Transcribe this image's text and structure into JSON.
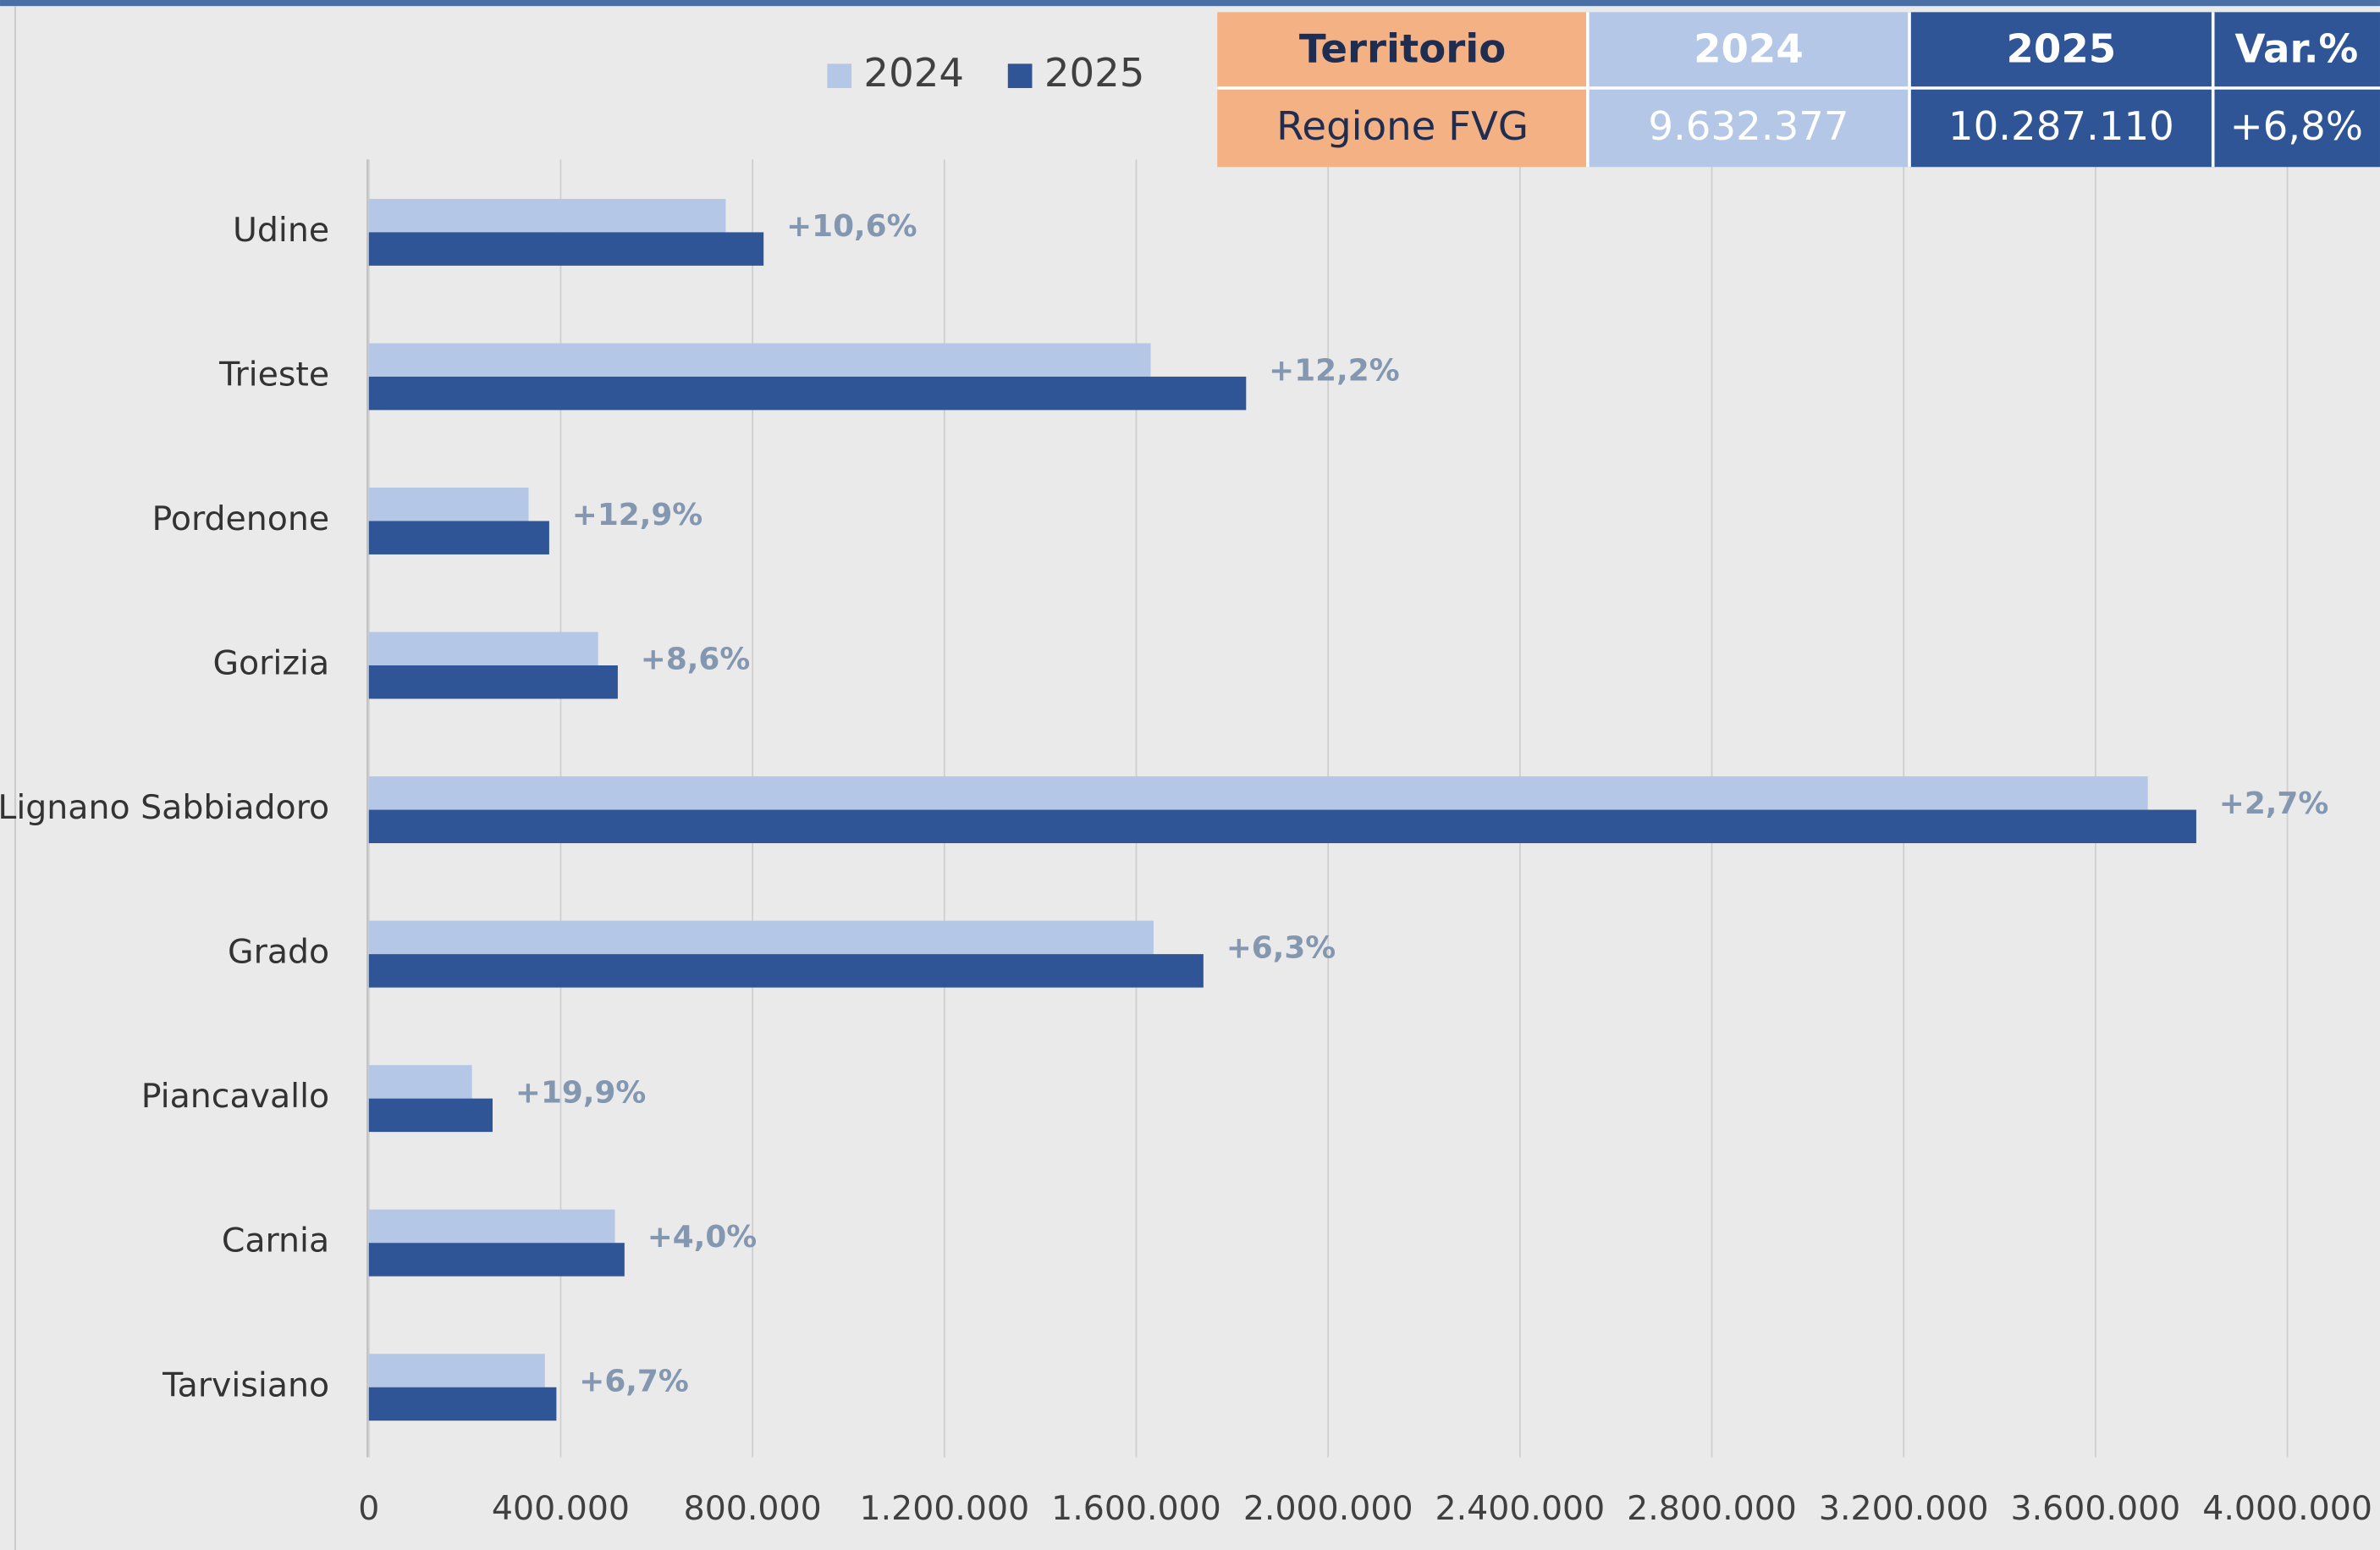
{
  "chart_data": {
    "type": "hbar",
    "categories": [
      "Udine",
      "Trieste",
      "Pordenone",
      "Gorizia",
      "Lignano Sabbiadoro",
      "Grado",
      "Piancavallo",
      "Carnia",
      "Tarvisiano"
    ],
    "series": [
      {
        "name": "2024",
        "color": "#b4c7e7",
        "values": [
          744000,
          1630000,
          333000,
          478000,
          3709000,
          1636000,
          215000,
          513000,
          367000
        ]
      },
      {
        "name": "2025",
        "color": "#2f5597",
        "values": [
          823000,
          1829000,
          376000,
          519000,
          3810000,
          1740000,
          258000,
          533000,
          391000
        ]
      }
    ],
    "change_labels": [
      "+10,6%",
      "+12,2%",
      "+12,9%",
      "+8,6%",
      "+2,7%",
      "+6,3%",
      "+19,9%",
      "+4,0%",
      "+6,7%"
    ],
    "xlim": [
      0,
      4000000
    ],
    "xticks": [
      0,
      {
        "value": 400000,
        "label": "400.000"
      },
      {
        "value": 800000,
        "label": "800.000"
      },
      {
        "value": 1200000,
        "label": "1.200.000"
      },
      {
        "value": 1600000,
        "label": "1.600.000"
      },
      {
        "value": 2000000,
        "label": "2.000.000"
      },
      {
        "value": 2400000,
        "label": "2.400.000"
      },
      {
        "value": 2800000,
        "label": "2.800.000"
      },
      {
        "value": 3200000,
        "label": "3.200.000"
      },
      {
        "value": 3600000,
        "label": "3.600.000"
      },
      {
        "value": 4000000,
        "label": "4.000.000"
      }
    ],
    "grid": true,
    "legend": "top"
  },
  "table": {
    "header": [
      "Territorio",
      "2024",
      "2025",
      "Var.%"
    ],
    "rows": [
      [
        "Regione FVG",
        "9.632.377",
        "10.287.110",
        "+6,8%"
      ]
    ]
  }
}
